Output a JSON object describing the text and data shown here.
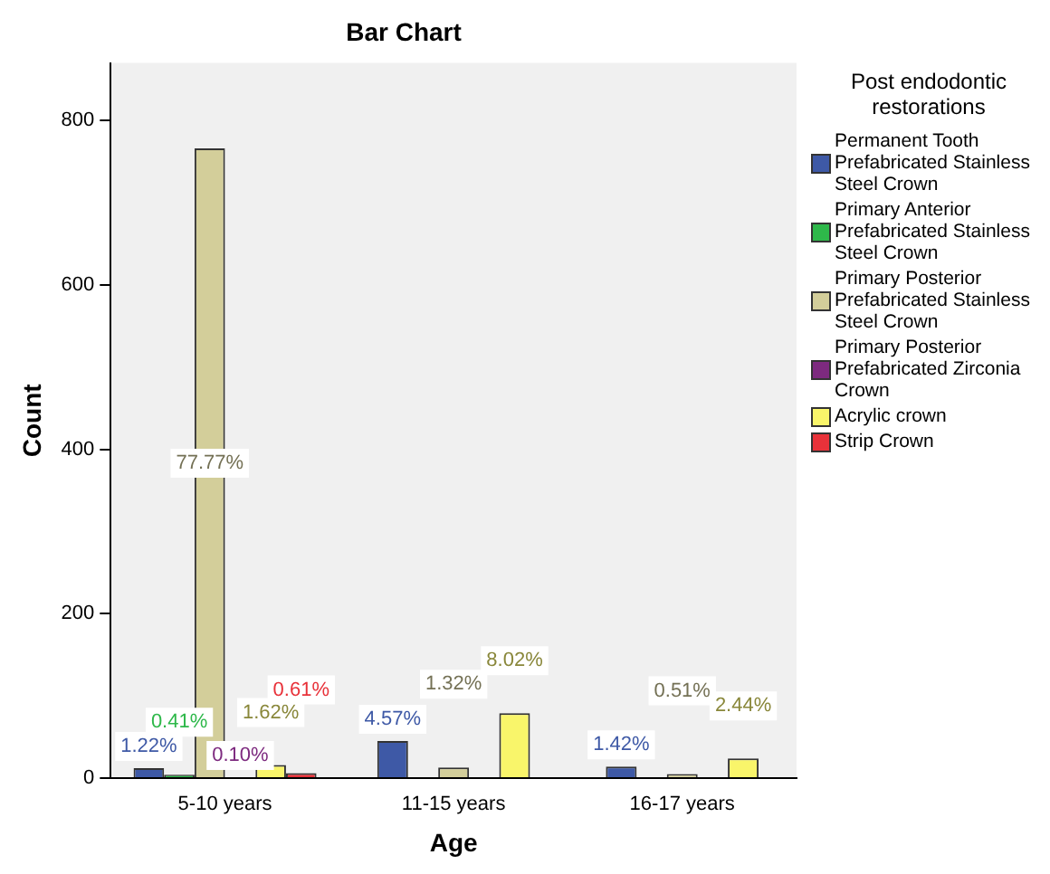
{
  "chart_data": {
    "type": "bar",
    "title": "Bar Chart",
    "xlabel": "Age",
    "ylabel": "Count",
    "legend_title": "Post endodontic restorations",
    "legend": "right",
    "categories": [
      "5-10 years",
      "11-15 years",
      "16-17 years"
    ],
    "ylim": [
      0,
      870
    ],
    "yticks": [
      0,
      200,
      400,
      600,
      800
    ],
    "grid": false,
    "series": [
      {
        "name": "Permanent Tooth Prefabricated Stainless Steel Crown",
        "color": "#3e59a6",
        "values": [
          12,
          45,
          14
        ]
      },
      {
        "name": "Primary Anterior Prefabricated Stainless Steel Crown",
        "color": "#2eb84a",
        "values": [
          4,
          null,
          null
        ]
      },
      {
        "name": "Primary Posterior Prefabricated Stainless Steel Crown",
        "color": "#d3ce9a",
        "values": [
          766,
          13,
          5
        ]
      },
      {
        "name": "Primary Posterior Prefabricated Zirconia Crown",
        "color": "#7d2a7f",
        "values": [
          1,
          null,
          null
        ]
      },
      {
        "name": "Acrylic crown",
        "color": "#f9f56a",
        "values": [
          16,
          79,
          24
        ]
      },
      {
        "name": "Strip Crown",
        "color": "#e8323a",
        "values": [
          6,
          null,
          null
        ]
      }
    ],
    "annotations": [
      "1.22%",
      "0.41%",
      "77.77%",
      "0.10%",
      "1.62%",
      "0.61%",
      "4.57%",
      "1.32%",
      "8.02%",
      "1.42%",
      "0.51%",
      "2.44%"
    ]
  }
}
